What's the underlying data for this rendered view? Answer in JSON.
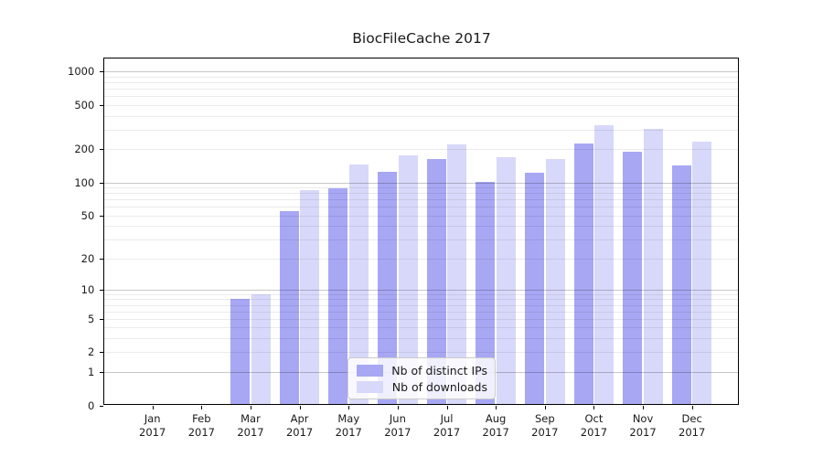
{
  "chart_data": {
    "type": "bar",
    "title": "BiocFileCache 2017",
    "categories": [
      "Jan 2017",
      "Feb 2017",
      "Mar 2017",
      "Apr 2017",
      "May 2017",
      "Jun 2017",
      "Jul 2017",
      "Aug 2017",
      "Sep 2017",
      "Oct 2017",
      "Nov 2017",
      "Dec 2017"
    ],
    "series": [
      {
        "name": "Nb of distinct IPs",
        "color": "#a7a7f4",
        "values": [
          0,
          0,
          8,
          55,
          89,
          125,
          163,
          102,
          122,
          224,
          190,
          143
        ]
      },
      {
        "name": "Nb of downloads",
        "color": "#d8d8fa",
        "values": [
          0,
          0,
          9,
          85,
          146,
          175,
          219,
          170,
          164,
          331,
          304,
          235
        ]
      }
    ],
    "yscale": "log1p",
    "ylim": [
      0,
      1340
    ],
    "ytick_values": [
      0,
      1,
      2,
      5,
      10,
      20,
      50,
      100,
      200,
      500,
      1000
    ],
    "ytick_labels": [
      "0",
      "1",
      "2",
      "5",
      "10",
      "20",
      "50",
      "100",
      "200",
      "500",
      "1000"
    ],
    "xlabel": "",
    "ylabel": "",
    "grid": "horizontal, major and minor, light gray",
    "legend_position": "inside bottom-center"
  }
}
